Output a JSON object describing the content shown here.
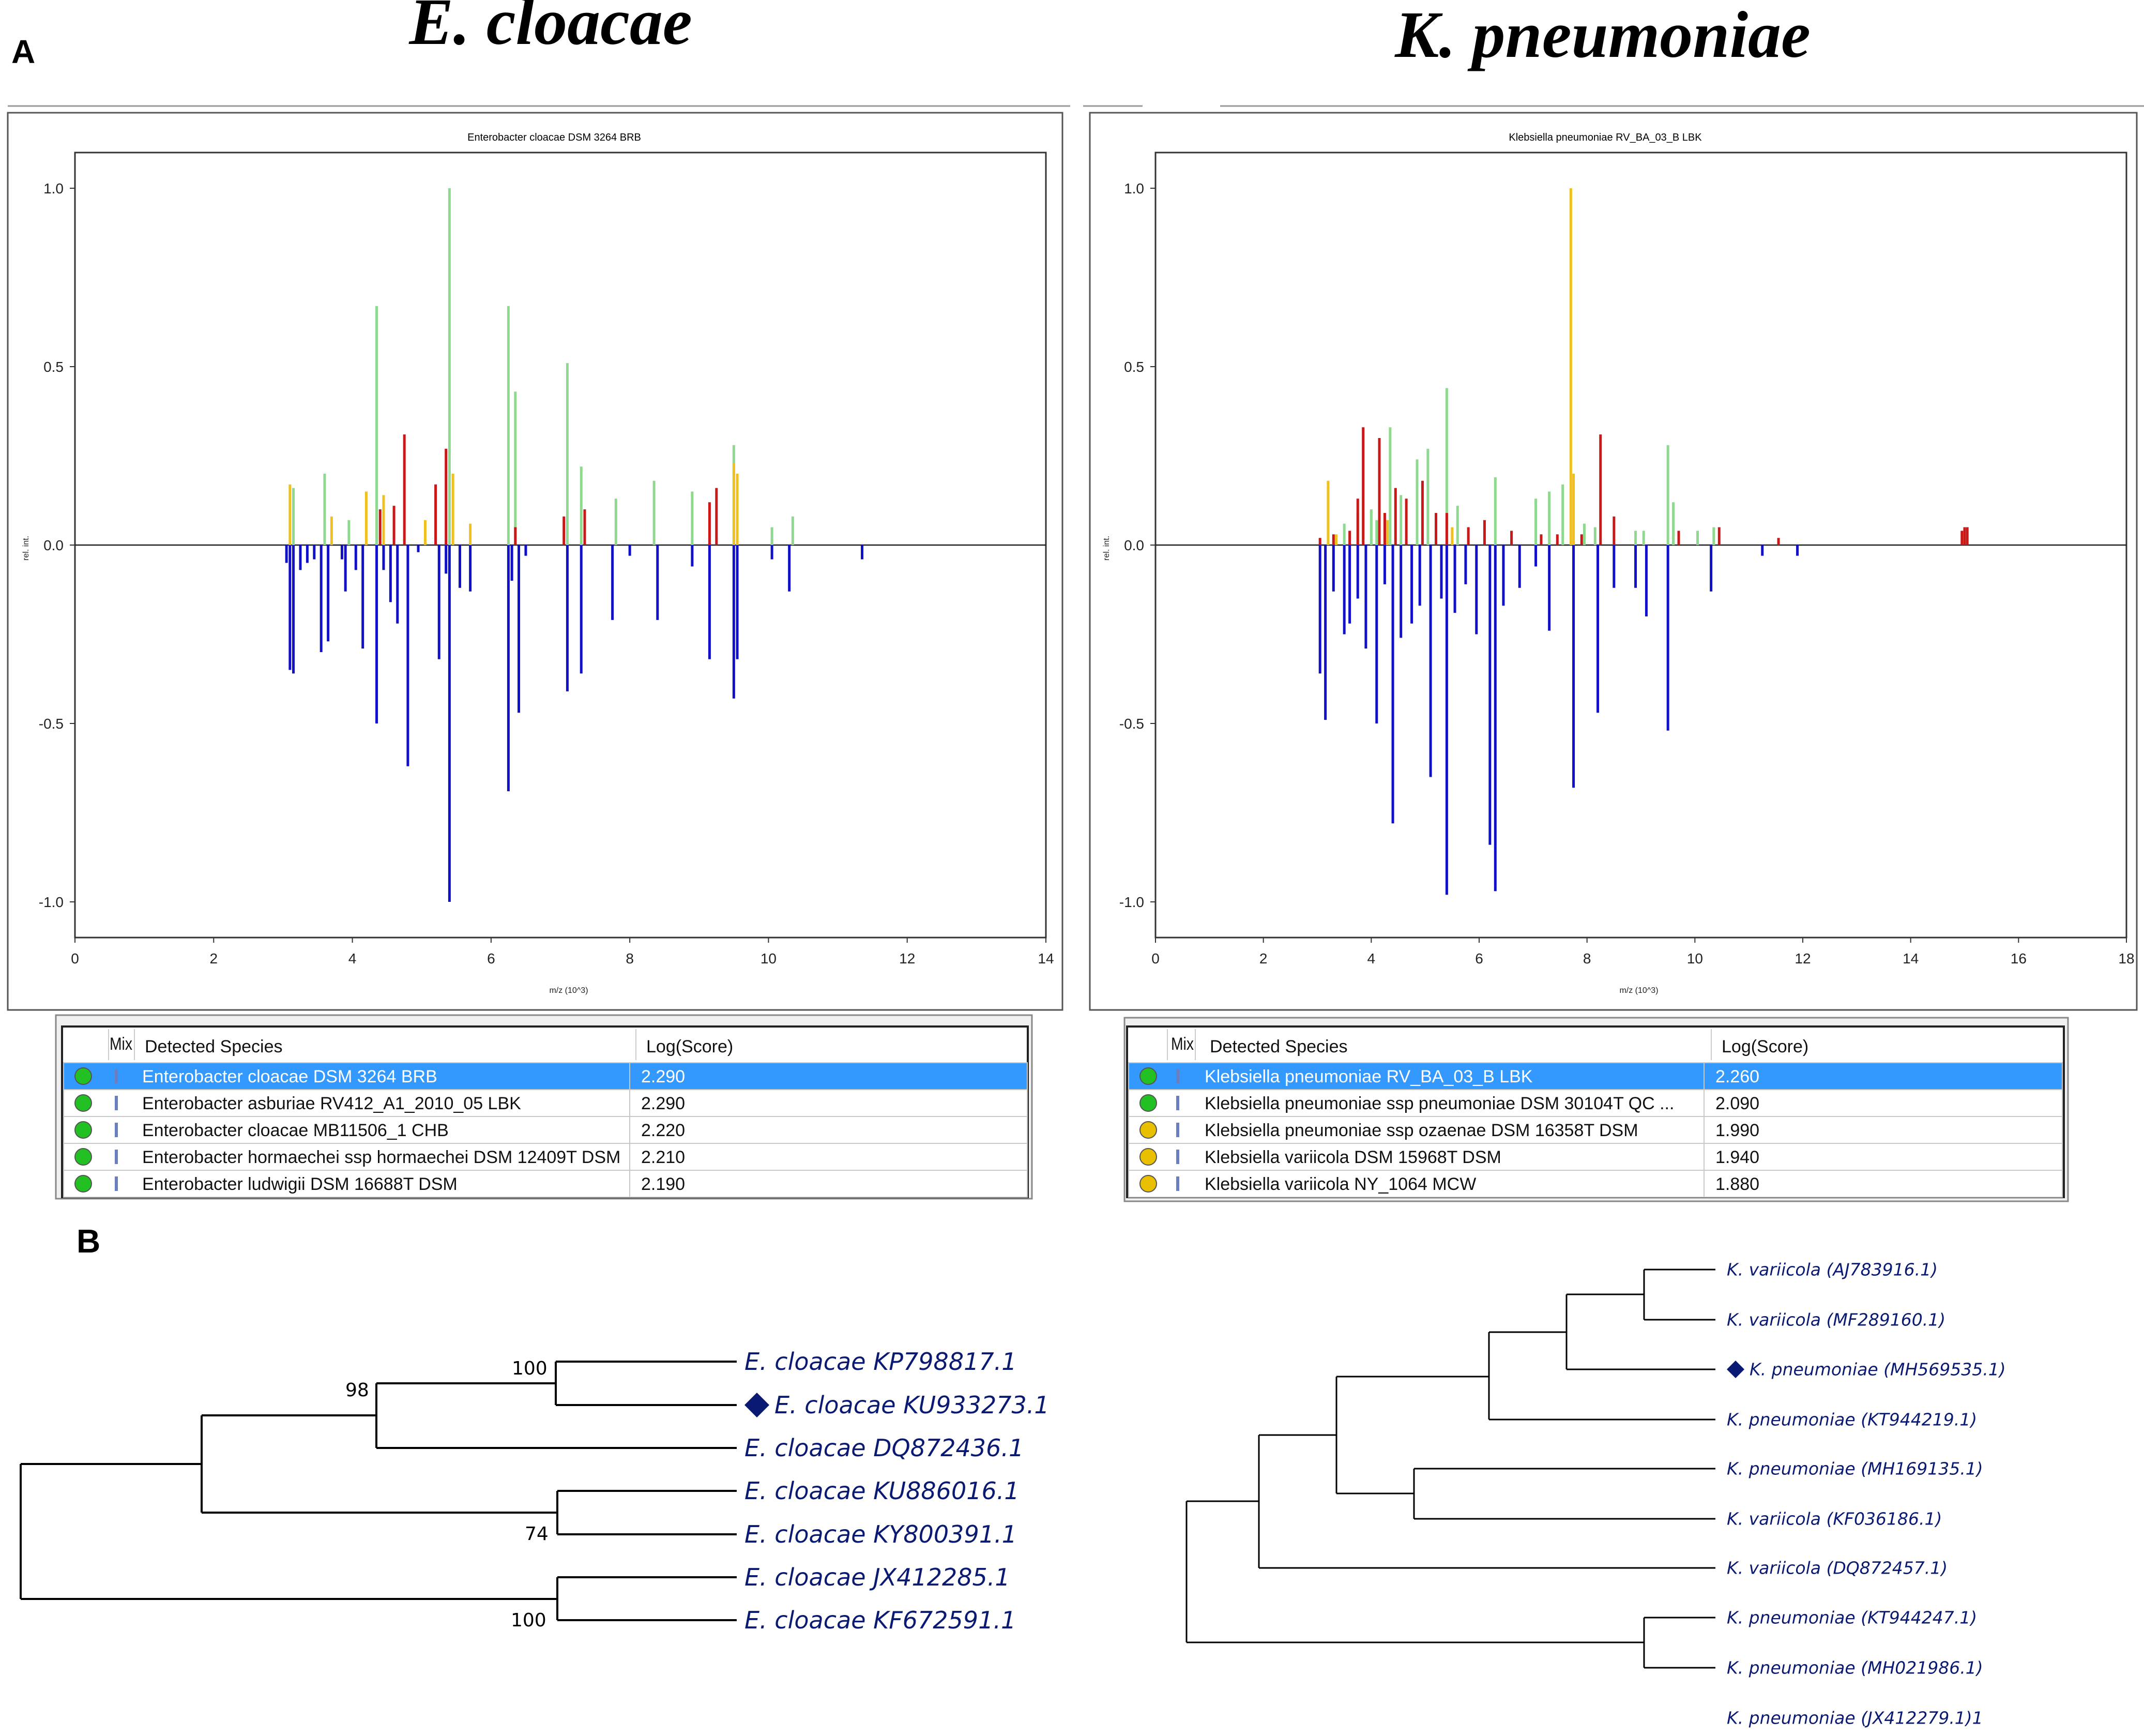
{
  "panel_labels": {
    "a": "A",
    "b": "B"
  },
  "titles": {
    "left": "E. cloacae",
    "right": "K. pneumoniae"
  },
  "colors": {
    "green": "#8fd88f",
    "yellow": "#f0c020",
    "red": "#c81818",
    "blue": "#1010c8",
    "selected_row": "#3399ff",
    "tree_text": "#0a1a72",
    "marker": "#0a1a72"
  },
  "chart_data": [
    {
      "type": "bar",
      "title": "Enterobacter cloacae DSM 3264 BRB",
      "xlabel": "m/z (10^3)",
      "ylabel": "rel. int.",
      "xlim": [
        0,
        14
      ],
      "ylim": [
        -1.1,
        1.1
      ],
      "xticks": [
        "0",
        "2",
        "4",
        "6",
        "8",
        "10",
        "12",
        "14"
      ],
      "yticks": [
        "1.0",
        "0.5",
        "0.0",
        "-0.5",
        "-1.0"
      ],
      "series": [
        {
          "name": "green",
          "x": [
            3.15,
            3.6,
            3.95,
            4.35,
            5.4,
            6.25,
            6.35,
            7.1,
            7.3,
            7.8,
            8.35,
            8.9,
            9.5,
            10.05,
            10.35
          ],
          "values": [
            0.16,
            0.2,
            0.07,
            0.67,
            1.0,
            0.67,
            0.43,
            0.51,
            0.22,
            0.13,
            0.18,
            0.15,
            0.28,
            0.05,
            0.08
          ]
        },
        {
          "name": "yellow",
          "x": [
            3.1,
            3.7,
            4.2,
            4.45,
            5.05,
            5.45,
            5.7,
            9.5,
            9.55
          ],
          "values": [
            0.17,
            0.08,
            0.15,
            0.14,
            0.07,
            0.2,
            0.06,
            0.23,
            0.2
          ]
        },
        {
          "name": "red",
          "x": [
            4.4,
            4.6,
            4.75,
            5.2,
            5.35,
            6.35,
            7.05,
            7.35,
            9.15,
            9.25
          ],
          "values": [
            0.1,
            0.11,
            0.31,
            0.17,
            0.27,
            0.05,
            0.08,
            0.1,
            0.12,
            0.16
          ]
        },
        {
          "name": "blue",
          "x": [
            3.05,
            3.1,
            3.15,
            3.25,
            3.35,
            3.45,
            3.55,
            3.65,
            3.85,
            3.9,
            4.05,
            4.15,
            4.35,
            4.45,
            4.55,
            4.65,
            4.8,
            4.95,
            5.25,
            5.35,
            5.4,
            5.55,
            5.7,
            6.25,
            6.3,
            6.4,
            6.5,
            7.1,
            7.3,
            7.75,
            8.0,
            8.4,
            8.9,
            9.15,
            9.5,
            9.55,
            10.05,
            10.3,
            11.35
          ],
          "values": [
            -0.05,
            -0.35,
            -0.36,
            -0.07,
            -0.05,
            -0.04,
            -0.3,
            -0.27,
            -0.04,
            -0.13,
            -0.07,
            -0.29,
            -0.5,
            -0.07,
            -0.16,
            -0.22,
            -0.62,
            -0.02,
            -0.32,
            -0.08,
            -1.0,
            -0.12,
            -0.13,
            -0.69,
            -0.1,
            -0.47,
            -0.03,
            -0.41,
            -0.36,
            -0.21,
            -0.03,
            -0.21,
            -0.06,
            -0.32,
            -0.43,
            -0.32,
            -0.04,
            -0.13,
            -0.04
          ]
        }
      ]
    },
    {
      "type": "bar",
      "title": "Klebsiella pneumoniae RV_BA_03_B LBK",
      "xlabel": "m/z (10^3)",
      "ylabel": "rel. int.",
      "xlim": [
        0,
        18
      ],
      "ylim": [
        -1.1,
        1.1
      ],
      "xticks": [
        "0",
        "2",
        "4",
        "6",
        "8",
        "10",
        "12",
        "14",
        "16",
        "18"
      ],
      "yticks": [
        "1.0",
        "0.5",
        "0.0",
        "-0.5",
        "-1.0"
      ],
      "series": [
        {
          "name": "green",
          "x": [
            3.5,
            3.75,
            4.0,
            4.1,
            4.35,
            4.55,
            4.85,
            5.05,
            5.4,
            5.6,
            6.3,
            7.05,
            7.3,
            7.55,
            7.95,
            8.15,
            8.9,
            9.05,
            9.5,
            9.6,
            10.05,
            10.35
          ],
          "values": [
            0.06,
            0.09,
            0.1,
            0.07,
            0.33,
            0.14,
            0.24,
            0.27,
            0.44,
            0.11,
            0.19,
            0.13,
            0.15,
            0.17,
            0.06,
            0.05,
            0.04,
            0.04,
            0.28,
            0.12,
            0.04,
            0.05
          ]
        },
        {
          "name": "yellow",
          "x": [
            3.2,
            3.35,
            4.3,
            5.5,
            7.7,
            7.75
          ],
          "values": [
            0.18,
            0.03,
            0.07,
            0.05,
            1.0,
            0.2
          ]
        },
        {
          "name": "red",
          "x": [
            3.05,
            3.3,
            3.6,
            3.75,
            3.85,
            4.15,
            4.25,
            4.45,
            4.65,
            4.95,
            5.2,
            5.4,
            5.8,
            6.1,
            6.6,
            7.15,
            7.45,
            7.9,
            8.25,
            8.5,
            9.7,
            10.45,
            11.55,
            14.95,
            15.0,
            15.05
          ],
          "values": [
            0.02,
            0.03,
            0.04,
            0.13,
            0.33,
            0.3,
            0.09,
            0.16,
            0.13,
            0.18,
            0.09,
            0.09,
            0.05,
            0.07,
            0.04,
            0.03,
            0.03,
            0.03,
            0.31,
            0.08,
            0.04,
            0.05,
            0.02,
            0.04,
            0.05,
            0.05
          ]
        },
        {
          "name": "blue",
          "x": [
            3.05,
            3.15,
            3.3,
            3.5,
            3.6,
            3.75,
            3.9,
            4.1,
            4.25,
            4.4,
            4.55,
            4.75,
            4.9,
            5.1,
            5.3,
            5.4,
            5.55,
            5.75,
            5.95,
            6.2,
            6.3,
            6.45,
            6.75,
            7.05,
            7.3,
            7.75,
            8.2,
            8.5,
            8.9,
            9.1,
            9.5,
            10.3,
            11.25,
            11.9
          ],
          "values": [
            -0.36,
            -0.49,
            -0.13,
            -0.25,
            -0.22,
            -0.15,
            -0.29,
            -0.5,
            -0.11,
            -0.78,
            -0.26,
            -0.22,
            -0.17,
            -0.65,
            -0.15,
            -0.98,
            -0.19,
            -0.11,
            -0.25,
            -0.84,
            -0.97,
            -0.17,
            -0.12,
            -0.06,
            -0.24,
            -0.68,
            -0.47,
            -0.12,
            -0.12,
            -0.2,
            -0.52,
            -0.13,
            -0.03,
            -0.03
          ]
        }
      ]
    }
  ],
  "tables": {
    "left": {
      "headers": {
        "mix": "Mix",
        "species": "Detected Species",
        "score": "Log(Score)"
      },
      "rows": [
        {
          "status": "green",
          "species": "Enterobacter cloacae DSM 3264 BRB",
          "score": "2.290",
          "selected": true
        },
        {
          "status": "green",
          "species": "Enterobacter asburiae RV412_A1_2010_05 LBK",
          "score": "2.290",
          "selected": false
        },
        {
          "status": "green",
          "species": "Enterobacter cloacae MB11506_1 CHB",
          "score": "2.220",
          "selected": false
        },
        {
          "status": "green",
          "species": "Enterobacter hormaechei ssp hormaechei DSM 12409T DSM",
          "score": "2.210",
          "selected": false
        },
        {
          "status": "green",
          "species": "Enterobacter ludwigii DSM 16688T DSM",
          "score": "2.190",
          "selected": false
        }
      ]
    },
    "right": {
      "headers": {
        "mix": "Mix",
        "species": "Detected Species",
        "score": "Log(Score)"
      },
      "rows": [
        {
          "status": "green",
          "species": "Klebsiella pneumoniae RV_BA_03_B LBK",
          "score": "2.260",
          "selected": true
        },
        {
          "status": "green",
          "species": "Klebsiella pneumoniae ssp pneumoniae DSM 30104T QC ...",
          "score": "2.090",
          "selected": false
        },
        {
          "status": "yellow",
          "species": "Klebsiella pneumoniae ssp ozaenae DSM 16358T DSM",
          "score": "1.990",
          "selected": false
        },
        {
          "status": "yellow",
          "species": "Klebsiella variicola DSM 15968T DSM",
          "score": "1.940",
          "selected": false
        },
        {
          "status": "yellow",
          "species": "Klebsiella variicola NY_1064 MCW",
          "score": "1.880",
          "selected": false
        }
      ]
    }
  },
  "trees": {
    "left": {
      "taxa": [
        "E. cloacae KP798817.1",
        "E. cloacae KU933273.1",
        "E. cloacae DQ872436.1",
        "E. cloacae KU886016.1",
        "E. cloacae KY800391.1",
        "E. cloacae JX412285.1",
        "E. cloacae KF672591.1"
      ],
      "marked_taxon": 1,
      "bootstrap": [
        "100",
        "98",
        "74",
        "100"
      ]
    },
    "right": {
      "taxa": [
        "K. variicola (AJ783916.1)",
        "K. variicola (MF289160.1)",
        "K. pneumoniae (MH569535.1)",
        "K. pneumoniae (KT944219.1)",
        "K. pneumoniae (MH169135.1)",
        "K. variicola (KF036186.1)",
        "K. variicola (DQ872457.1)",
        "K. pneumoniae (KT944247.1)",
        "K. pneumoniae (MH021986.1)",
        "K. pneumoniae (JX412279.1)1"
      ],
      "marked_taxon": 2
    }
  }
}
